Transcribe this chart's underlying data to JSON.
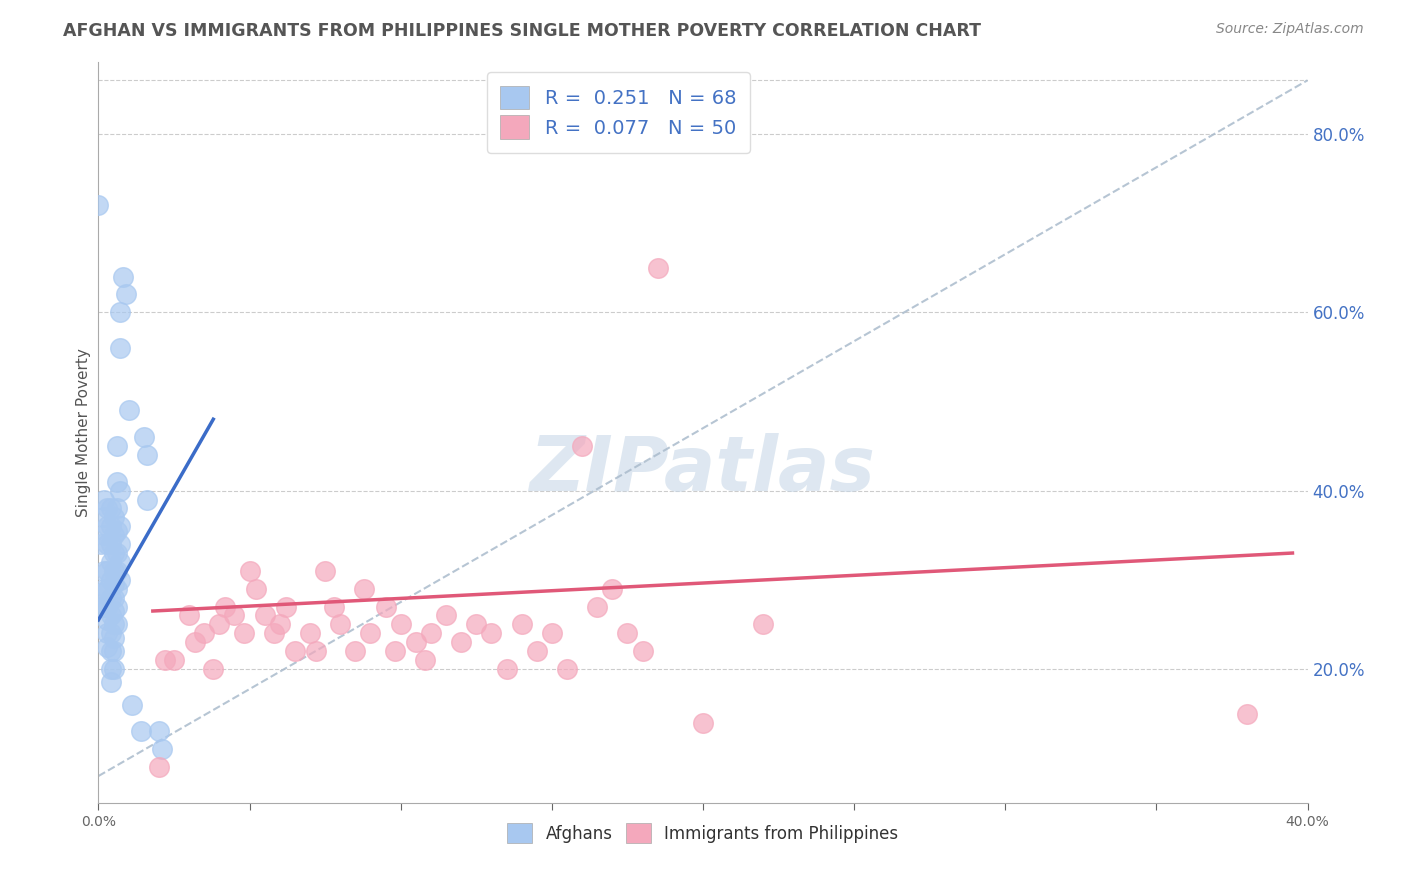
{
  "title": "AFGHAN VS IMMIGRANTS FROM PHILIPPINES SINGLE MOTHER POVERTY CORRELATION CHART",
  "source": "Source: ZipAtlas.com",
  "ylabel": "Single Mother Poverty",
  "right_ytick_vals": [
    0.2,
    0.4,
    0.6,
    0.8
  ],
  "xlim": [
    0.0,
    0.4
  ],
  "ylim": [
    0.05,
    0.88
  ],
  "watermark": "ZIPatlas",
  "afghan_color": "#A8C8F0",
  "phil_color": "#F4A8BC",
  "afghan_line_color": "#3B6CC8",
  "phil_line_color": "#E05878",
  "diagonal_color": "#AABBCC",
  "afghans": [
    [
      0.0,
      0.72
    ],
    [
      0.001,
      0.285
    ],
    [
      0.001,
      0.27
    ],
    [
      0.001,
      0.34
    ],
    [
      0.002,
      0.39
    ],
    [
      0.002,
      0.37
    ],
    [
      0.002,
      0.35
    ],
    [
      0.002,
      0.31
    ],
    [
      0.002,
      0.29
    ],
    [
      0.002,
      0.27
    ],
    [
      0.003,
      0.38
    ],
    [
      0.003,
      0.36
    ],
    [
      0.003,
      0.34
    ],
    [
      0.003,
      0.31
    ],
    [
      0.003,
      0.29
    ],
    [
      0.003,
      0.27
    ],
    [
      0.003,
      0.255
    ],
    [
      0.003,
      0.24
    ],
    [
      0.003,
      0.225
    ],
    [
      0.004,
      0.38
    ],
    [
      0.004,
      0.36
    ],
    [
      0.004,
      0.34
    ],
    [
      0.004,
      0.32
    ],
    [
      0.004,
      0.3
    ],
    [
      0.004,
      0.28
    ],
    [
      0.004,
      0.26
    ],
    [
      0.004,
      0.24
    ],
    [
      0.004,
      0.22
    ],
    [
      0.004,
      0.2
    ],
    [
      0.004,
      0.185
    ],
    [
      0.005,
      0.37
    ],
    [
      0.005,
      0.35
    ],
    [
      0.005,
      0.33
    ],
    [
      0.005,
      0.31
    ],
    [
      0.005,
      0.295
    ],
    [
      0.005,
      0.28
    ],
    [
      0.005,
      0.265
    ],
    [
      0.005,
      0.25
    ],
    [
      0.005,
      0.235
    ],
    [
      0.005,
      0.22
    ],
    [
      0.005,
      0.2
    ],
    [
      0.006,
      0.45
    ],
    [
      0.006,
      0.41
    ],
    [
      0.006,
      0.38
    ],
    [
      0.006,
      0.355
    ],
    [
      0.006,
      0.33
    ],
    [
      0.006,
      0.31
    ],
    [
      0.006,
      0.29
    ],
    [
      0.006,
      0.27
    ],
    [
      0.006,
      0.25
    ],
    [
      0.007,
      0.6
    ],
    [
      0.007,
      0.56
    ],
    [
      0.007,
      0.4
    ],
    [
      0.007,
      0.36
    ],
    [
      0.007,
      0.34
    ],
    [
      0.007,
      0.32
    ],
    [
      0.007,
      0.3
    ],
    [
      0.008,
      0.64
    ],
    [
      0.009,
      0.62
    ],
    [
      0.01,
      0.49
    ],
    [
      0.011,
      0.16
    ],
    [
      0.014,
      0.13
    ],
    [
      0.015,
      0.46
    ],
    [
      0.016,
      0.44
    ],
    [
      0.016,
      0.39
    ],
    [
      0.02,
      0.13
    ],
    [
      0.021,
      0.11
    ]
  ],
  "philippines": [
    [
      0.02,
      0.09
    ],
    [
      0.022,
      0.21
    ],
    [
      0.025,
      0.21
    ],
    [
      0.03,
      0.26
    ],
    [
      0.032,
      0.23
    ],
    [
      0.035,
      0.24
    ],
    [
      0.038,
      0.2
    ],
    [
      0.04,
      0.25
    ],
    [
      0.042,
      0.27
    ],
    [
      0.045,
      0.26
    ],
    [
      0.048,
      0.24
    ],
    [
      0.05,
      0.31
    ],
    [
      0.052,
      0.29
    ],
    [
      0.055,
      0.26
    ],
    [
      0.058,
      0.24
    ],
    [
      0.06,
      0.25
    ],
    [
      0.062,
      0.27
    ],
    [
      0.065,
      0.22
    ],
    [
      0.07,
      0.24
    ],
    [
      0.072,
      0.22
    ],
    [
      0.075,
      0.31
    ],
    [
      0.078,
      0.27
    ],
    [
      0.08,
      0.25
    ],
    [
      0.085,
      0.22
    ],
    [
      0.088,
      0.29
    ],
    [
      0.09,
      0.24
    ],
    [
      0.095,
      0.27
    ],
    [
      0.098,
      0.22
    ],
    [
      0.1,
      0.25
    ],
    [
      0.105,
      0.23
    ],
    [
      0.108,
      0.21
    ],
    [
      0.11,
      0.24
    ],
    [
      0.115,
      0.26
    ],
    [
      0.12,
      0.23
    ],
    [
      0.125,
      0.25
    ],
    [
      0.13,
      0.24
    ],
    [
      0.135,
      0.2
    ],
    [
      0.14,
      0.25
    ],
    [
      0.145,
      0.22
    ],
    [
      0.15,
      0.24
    ],
    [
      0.155,
      0.2
    ],
    [
      0.16,
      0.45
    ],
    [
      0.165,
      0.27
    ],
    [
      0.17,
      0.29
    ],
    [
      0.175,
      0.24
    ],
    [
      0.18,
      0.22
    ],
    [
      0.185,
      0.65
    ],
    [
      0.2,
      0.14
    ],
    [
      0.22,
      0.25
    ],
    [
      0.38,
      0.15
    ]
  ],
  "afghan_line_x": [
    0.0,
    0.038
  ],
  "afghan_line_y": [
    0.255,
    0.48
  ],
  "phil_line_x": [
    0.018,
    0.395
  ],
  "phil_line_y": [
    0.265,
    0.33
  ]
}
